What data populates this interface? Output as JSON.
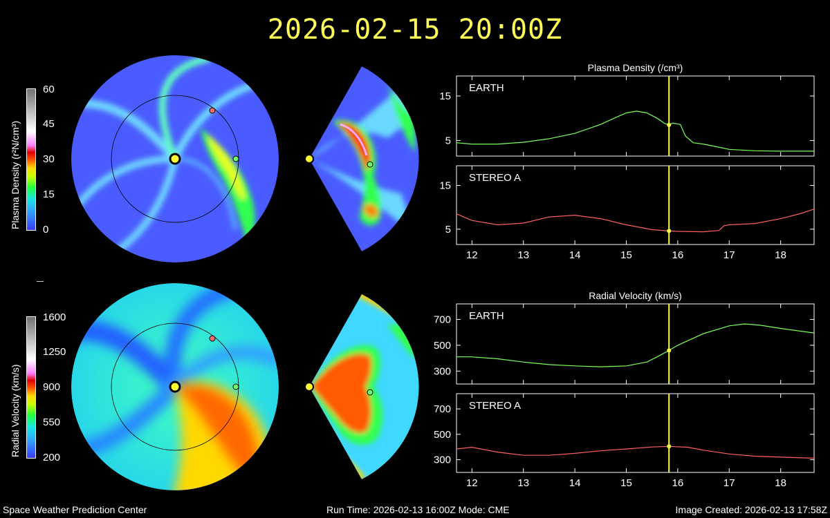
{
  "title": "2026-02-15  20:00Z",
  "colorbars": {
    "density": {
      "label": "Plasma Density (r²N/cm³)",
      "ticks": [
        "60",
        "45",
        "30",
        "15",
        "0"
      ]
    },
    "velocity": {
      "label": "Radial Velocity (km/s)",
      "ticks": [
        "1600",
        "1250",
        "900",
        "550",
        "200"
      ]
    }
  },
  "panels": {
    "density_title": "Plasma Density (/cm³)",
    "velocity_title": "Radial Velocity (km/s)"
  },
  "colors": {
    "earth": "#7cff5a",
    "stereo": "#ff6060",
    "marker": "#ffff44",
    "accent": "#ffff55"
  },
  "chart_data": [
    {
      "type": "line",
      "id": "density-earth",
      "label": "EARTH",
      "xlim": [
        11.7,
        18.65
      ],
      "ylim": [
        1.5,
        19.5
      ],
      "yticks": [
        5,
        15
      ],
      "xticks": [
        12,
        13,
        14,
        15,
        16,
        17,
        18
      ],
      "marker_x": 15.83,
      "x": [
        11.7,
        12.0,
        12.5,
        13.0,
        13.5,
        14.0,
        14.5,
        14.8,
        15.0,
        15.2,
        15.4,
        15.6,
        15.75,
        15.83,
        15.9,
        16.05,
        16.15,
        16.3,
        16.5,
        16.8,
        17.0,
        17.5,
        18.0,
        18.65
      ],
      "y": [
        4.5,
        4.2,
        4.2,
        4.6,
        5.4,
        6.6,
        8.6,
        10.2,
        11.2,
        11.6,
        11.2,
        10.0,
        8.8,
        8.5,
        8.9,
        8.6,
        6.0,
        4.5,
        4.2,
        3.5,
        3.0,
        2.7,
        2.6,
        2.6
      ]
    },
    {
      "type": "line",
      "id": "density-stereo",
      "label": "STEREO A",
      "xlim": [
        11.7,
        18.65
      ],
      "ylim": [
        1.5,
        19.5
      ],
      "yticks": [
        5,
        15
      ],
      "xticks": [
        12,
        13,
        14,
        15,
        16,
        17,
        18
      ],
      "marker_x": 15.83,
      "x": [
        11.7,
        12.0,
        12.5,
        13.0,
        13.5,
        14.0,
        14.5,
        15.0,
        15.5,
        15.83,
        16.0,
        16.5,
        16.8,
        16.9,
        17.0,
        17.5,
        18.0,
        18.4,
        18.65
      ],
      "y": [
        8.5,
        7.0,
        6.0,
        6.4,
        7.8,
        8.2,
        7.4,
        6.0,
        4.9,
        4.6,
        4.5,
        4.4,
        4.7,
        5.8,
        6.0,
        6.3,
        7.4,
        8.6,
        9.6
      ]
    },
    {
      "type": "line",
      "id": "velocity-earth",
      "label": "EARTH",
      "xlim": [
        11.7,
        18.65
      ],
      "ylim": [
        200,
        820
      ],
      "yticks": [
        300,
        500,
        700
      ],
      "xticks": [
        12,
        13,
        14,
        15,
        16,
        17,
        18
      ],
      "marker_x": 15.83,
      "x": [
        11.7,
        12.0,
        12.5,
        13.0,
        13.5,
        14.0,
        14.5,
        15.0,
        15.4,
        15.6,
        15.83,
        16.0,
        16.5,
        17.0,
        17.3,
        17.6,
        18.0,
        18.65
      ],
      "y": [
        410,
        410,
        395,
        370,
        350,
        340,
        333,
        340,
        370,
        410,
        460,
        500,
        590,
        650,
        665,
        655,
        630,
        595
      ]
    },
    {
      "type": "line",
      "id": "velocity-stereo",
      "label": "STEREO A",
      "xlim": [
        11.7,
        18.65
      ],
      "ylim": [
        200,
        820
      ],
      "yticks": [
        300,
        500,
        700
      ],
      "xticks": [
        12,
        13,
        14,
        15,
        16,
        17,
        18
      ],
      "marker_x": 15.83,
      "x": [
        11.7,
        12.0,
        12.5,
        13.0,
        13.5,
        14.0,
        14.5,
        15.0,
        15.5,
        15.83,
        16.2,
        16.5,
        17.0,
        17.5,
        18.0,
        18.65
      ],
      "y": [
        385,
        398,
        360,
        335,
        335,
        350,
        370,
        385,
        400,
        405,
        398,
        375,
        345,
        328,
        320,
        312
      ]
    }
  ],
  "x_tick_labels": [
    "12",
    "13",
    "14",
    "15",
    "16",
    "17",
    "18"
  ],
  "footer": {
    "left": "Space Weather Prediction Center",
    "center": "Run Time: 2026-02-13 16:00Z  Mode: CME",
    "right": "Image Created: 2026-02-13 17:58Z"
  }
}
